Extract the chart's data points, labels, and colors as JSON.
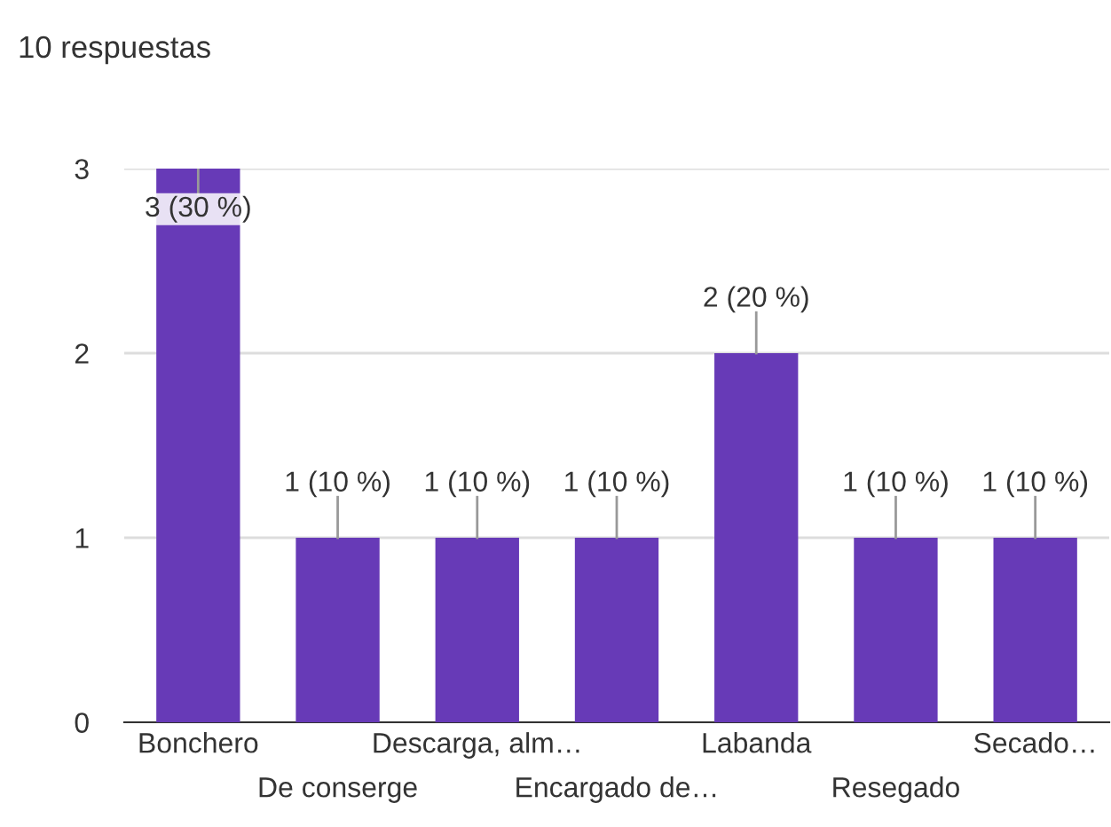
{
  "chart_data": {
    "type": "bar",
    "title": "10 respuestas",
    "categories": [
      "Bonchero",
      "De conserge",
      "Descarga, alm…",
      "Encargado de…",
      "Labanda",
      "Resegado",
      "Secado…"
    ],
    "values": [
      3,
      1,
      1,
      1,
      2,
      1,
      1
    ],
    "value_labels": [
      "3 (30 %)",
      "1 (10 %)",
      "1 (10 %)",
      "1 (10 %)",
      "2 (20 %)",
      "1 (10 %)",
      "1 (10 %)"
    ],
    "color": "#673ab7",
    "ylim": [
      0,
      3
    ],
    "yticks": [
      0,
      1,
      2,
      3
    ],
    "grid": "y"
  }
}
